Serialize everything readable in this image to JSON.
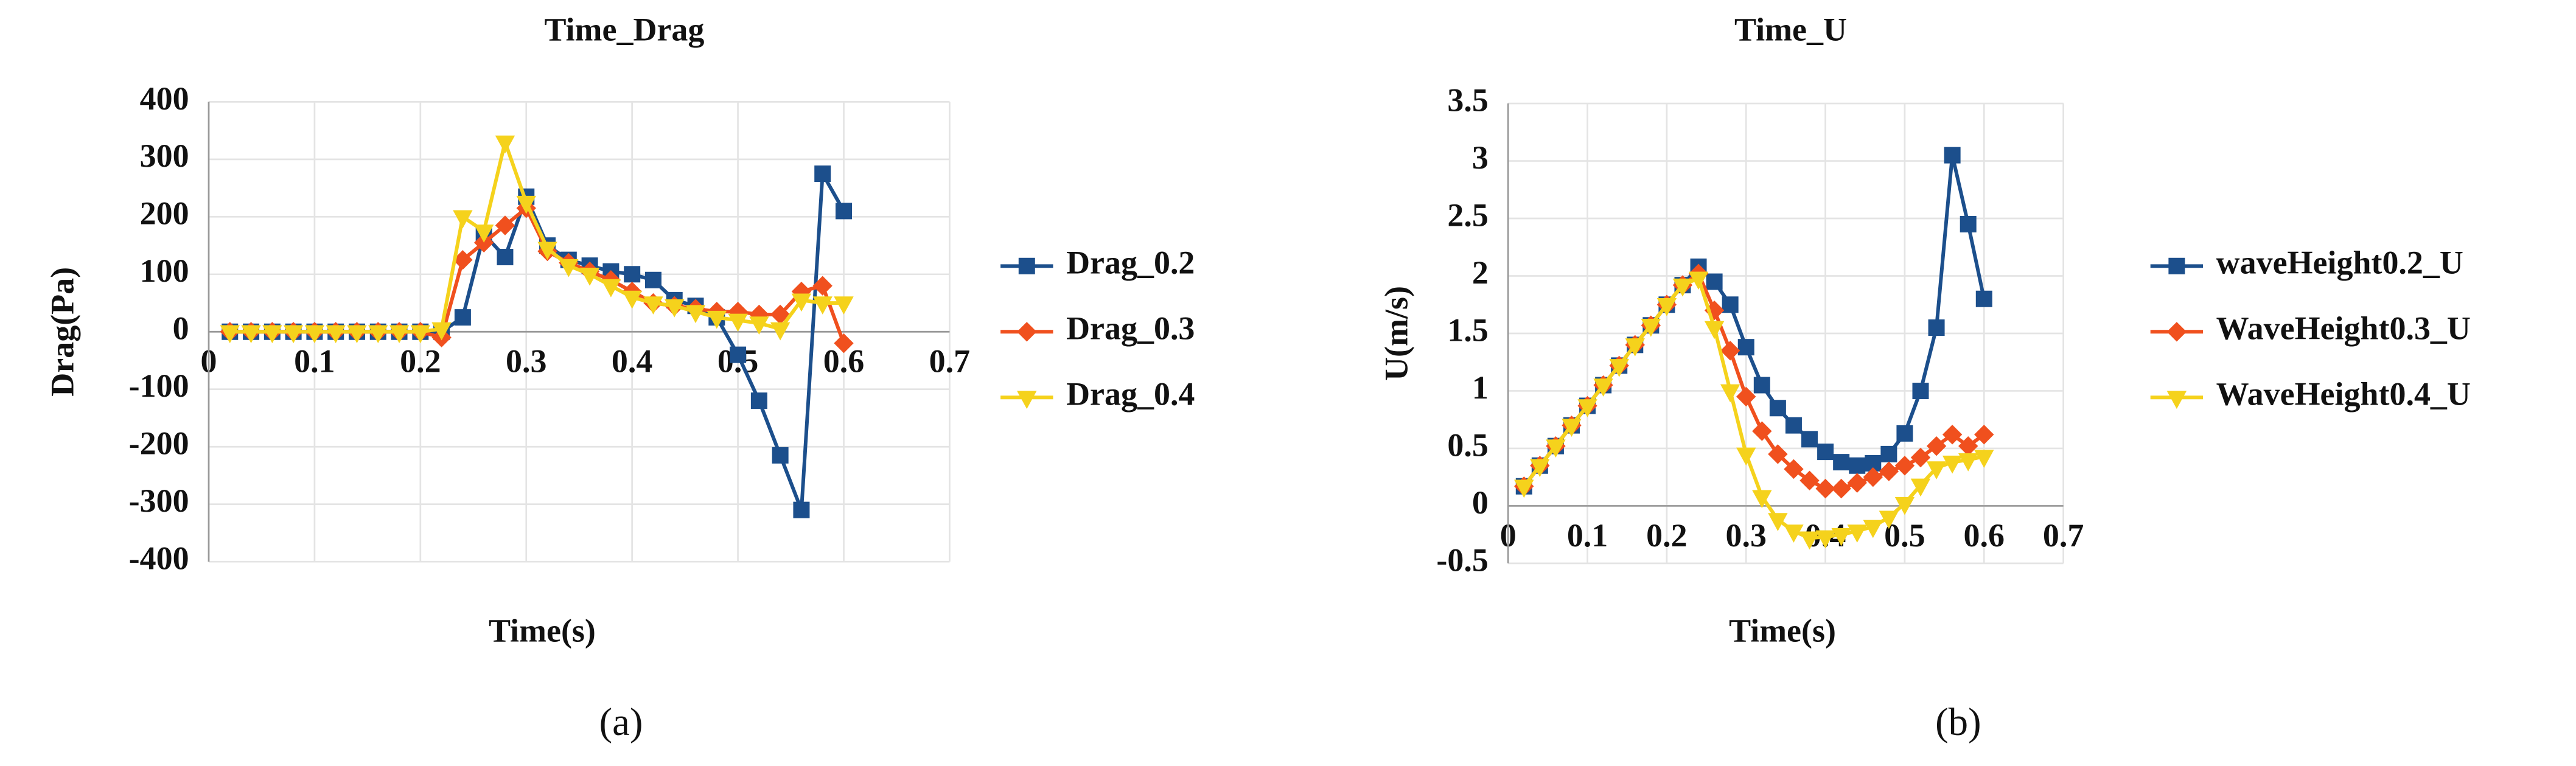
{
  "chart_data": [
    {
      "type": "line",
      "title": "Time_Drag",
      "x_label": "Time(s)",
      "y_label": "Drag(Pa)",
      "caption": "(a)",
      "x": [
        0.02,
        0.04,
        0.06,
        0.08,
        0.1,
        0.12,
        0.14,
        0.16,
        0.18,
        0.2,
        0.22,
        0.24,
        0.26,
        0.28,
        0.3,
        0.32,
        0.34,
        0.36,
        0.38,
        0.4,
        0.42,
        0.44,
        0.46,
        0.48,
        0.5,
        0.52,
        0.54,
        0.56,
        0.58,
        0.6
      ],
      "series": [
        {
          "name": "Drag_0.2",
          "color": "#1c4f8c",
          "marker": "square",
          "values": [
            0,
            0,
            0,
            0,
            0,
            0,
            0,
            0,
            0,
            0,
            0,
            25,
            170,
            130,
            235,
            150,
            125,
            115,
            105,
            100,
            90,
            55,
            45,
            25,
            -40,
            -120,
            -215,
            -310,
            275,
            210
          ]
        },
        {
          "name": "Drag_0.3",
          "color": "#f0501e",
          "marker": "diamond",
          "values": [
            0,
            0,
            0,
            0,
            0,
            0,
            0,
            0,
            0,
            0,
            -10,
            125,
            155,
            185,
            215,
            140,
            120,
            105,
            90,
            70,
            50,
            45,
            40,
            35,
            35,
            30,
            30,
            70,
            80,
            -20
          ]
        },
        {
          "name": "Drag_0.4",
          "color": "#f5d21c",
          "marker": "triangle-down",
          "values": [
            0,
            0,
            0,
            0,
            0,
            0,
            0,
            0,
            0,
            0,
            5,
            200,
            175,
            330,
            225,
            145,
            115,
            100,
            80,
            60,
            50,
            45,
            35,
            25,
            20,
            15,
            5,
            55,
            50,
            50
          ]
        }
      ],
      "xlim": [
        0,
        0.7
      ],
      "xticks": [
        0,
        0.1,
        0.2,
        0.3,
        0.4,
        0.5,
        0.6,
        0.7
      ],
      "ylim": [
        -400,
        400
      ],
      "yticks": [
        -400,
        -300,
        -200,
        -100,
        0,
        100,
        200,
        300,
        400
      ],
      "grid": true,
      "legend": "right"
    },
    {
      "type": "line",
      "title": "Time_U",
      "x_label": "Time(s)",
      "y_label": "U(m/s)",
      "caption": "(b)",
      "x": [
        0.02,
        0.04,
        0.06,
        0.08,
        0.1,
        0.12,
        0.14,
        0.16,
        0.18,
        0.2,
        0.22,
        0.24,
        0.26,
        0.28,
        0.3,
        0.32,
        0.34,
        0.36,
        0.38,
        0.4,
        0.42,
        0.44,
        0.46,
        0.48,
        0.5,
        0.52,
        0.54,
        0.56,
        0.58,
        0.6
      ],
      "series": [
        {
          "name": "waveHeight0.2_U",
          "color": "#1c4f8c",
          "marker": "square",
          "values": [
            0.17,
            0.35,
            0.52,
            0.7,
            0.87,
            1.05,
            1.22,
            1.4,
            1.57,
            1.75,
            1.92,
            2.08,
            1.95,
            1.75,
            1.38,
            1.05,
            0.85,
            0.7,
            0.58,
            0.47,
            0.38,
            0.35,
            0.37,
            0.45,
            0.63,
            1.0,
            1.55,
            3.05,
            2.45,
            1.8
          ]
        },
        {
          "name": "WaveHeight0.3_U",
          "color": "#f0501e",
          "marker": "diamond",
          "values": [
            0.17,
            0.35,
            0.52,
            0.7,
            0.87,
            1.05,
            1.22,
            1.4,
            1.57,
            1.75,
            1.92,
            2.02,
            1.7,
            1.35,
            0.95,
            0.65,
            0.45,
            0.32,
            0.22,
            0.15,
            0.15,
            0.2,
            0.25,
            0.3,
            0.35,
            0.42,
            0.52,
            0.62,
            0.52,
            0.62
          ]
        },
        {
          "name": "WaveHeight0.4_U",
          "color": "#f5d21c",
          "marker": "triangle-down",
          "values": [
            0.17,
            0.35,
            0.52,
            0.7,
            0.87,
            1.05,
            1.22,
            1.4,
            1.57,
            1.75,
            1.92,
            1.98,
            1.55,
            1.0,
            0.45,
            0.08,
            -0.12,
            -0.22,
            -0.28,
            -0.27,
            -0.25,
            -0.22,
            -0.18,
            -0.1,
            0.02,
            0.18,
            0.33,
            0.38,
            0.4,
            0.43
          ]
        }
      ],
      "xlim": [
        0,
        0.7
      ],
      "xticks": [
        0,
        0.1,
        0.2,
        0.3,
        0.4,
        0.5,
        0.6,
        0.7
      ],
      "ylim": [
        -0.5,
        3.5
      ],
      "yticks": [
        -0.5,
        0,
        0.5,
        1,
        1.5,
        2,
        2.5,
        3,
        3.5
      ],
      "grid": true,
      "legend": "right"
    }
  ]
}
